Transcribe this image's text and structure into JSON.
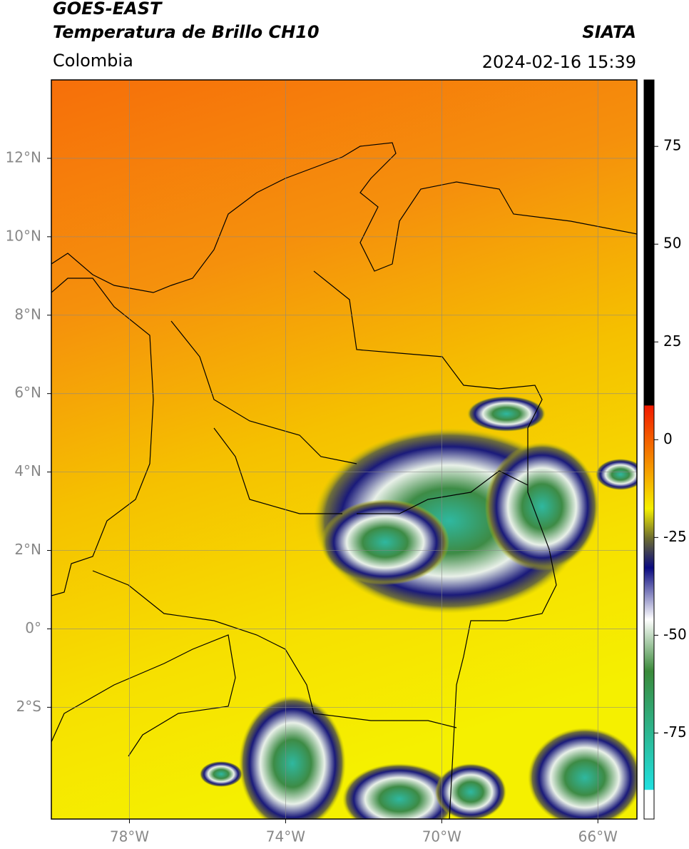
{
  "header": {
    "title": "GOES-EAST",
    "subtitle": "Temperatura de Brillo CH10",
    "region": "Colombia",
    "source": "SIATA",
    "datetime": "2024-02-16 15:39"
  },
  "map": {
    "xlim": [
      -80,
      -65
    ],
    "ylim": [
      -4.85,
      14
    ],
    "xticks": [
      {
        "value": -78,
        "label": "78°W"
      },
      {
        "value": -74,
        "label": "74°W"
      },
      {
        "value": -70,
        "label": "70°W"
      },
      {
        "value": -66,
        "label": "66°W"
      }
    ],
    "yticks": [
      {
        "value": 12,
        "label": "12°N"
      },
      {
        "value": 10,
        "label": "10°N"
      },
      {
        "value": 8,
        "label": "8°N"
      },
      {
        "value": 6,
        "label": "6°N"
      },
      {
        "value": 4,
        "label": "4°N"
      },
      {
        "value": 2,
        "label": "2°N"
      },
      {
        "value": 0,
        "label": "0°"
      },
      {
        "value": -2,
        "label": "2°S"
      }
    ],
    "grid": true
  },
  "colorbar": {
    "lim": [
      -97,
      92
    ],
    "ticks": [
      75,
      50,
      25,
      0,
      -25,
      -50,
      -75
    ]
  }
}
